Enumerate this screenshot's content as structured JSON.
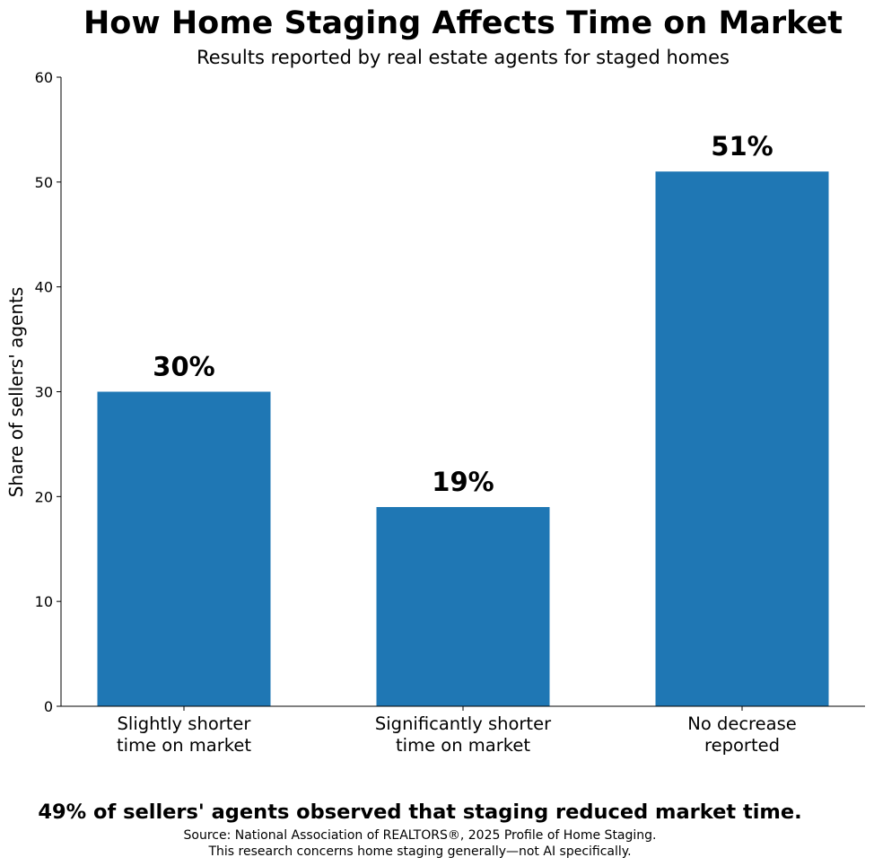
{
  "chart_data": {
    "type": "bar",
    "title": "How Home Staging Affects Time on Market",
    "subtitle": "Results reported by real estate agents for staged homes",
    "ylabel": "Share of sellers' agents",
    "xlabel": "",
    "categories": [
      [
        "Slightly shorter",
        "time on market"
      ],
      [
        "Significantly shorter",
        "time on market"
      ],
      [
        "No decrease",
        "reported"
      ]
    ],
    "values": [
      30,
      19,
      51
    ],
    "data_labels": [
      "30%",
      "19%",
      "51%"
    ],
    "ylim": [
      0,
      60
    ],
    "yticks": [
      0,
      10,
      20,
      30,
      40,
      50,
      60
    ],
    "grid": false,
    "legend": "none",
    "bar_color": "#1f77b4"
  },
  "footer": {
    "takeaway": "49% of sellers' agents observed that staging reduced market time.",
    "source_line1": "Source: National Association of REALTORS®, 2025 Profile of Home Staging.",
    "source_line2": "This research concerns home staging generally—not AI specifically."
  }
}
